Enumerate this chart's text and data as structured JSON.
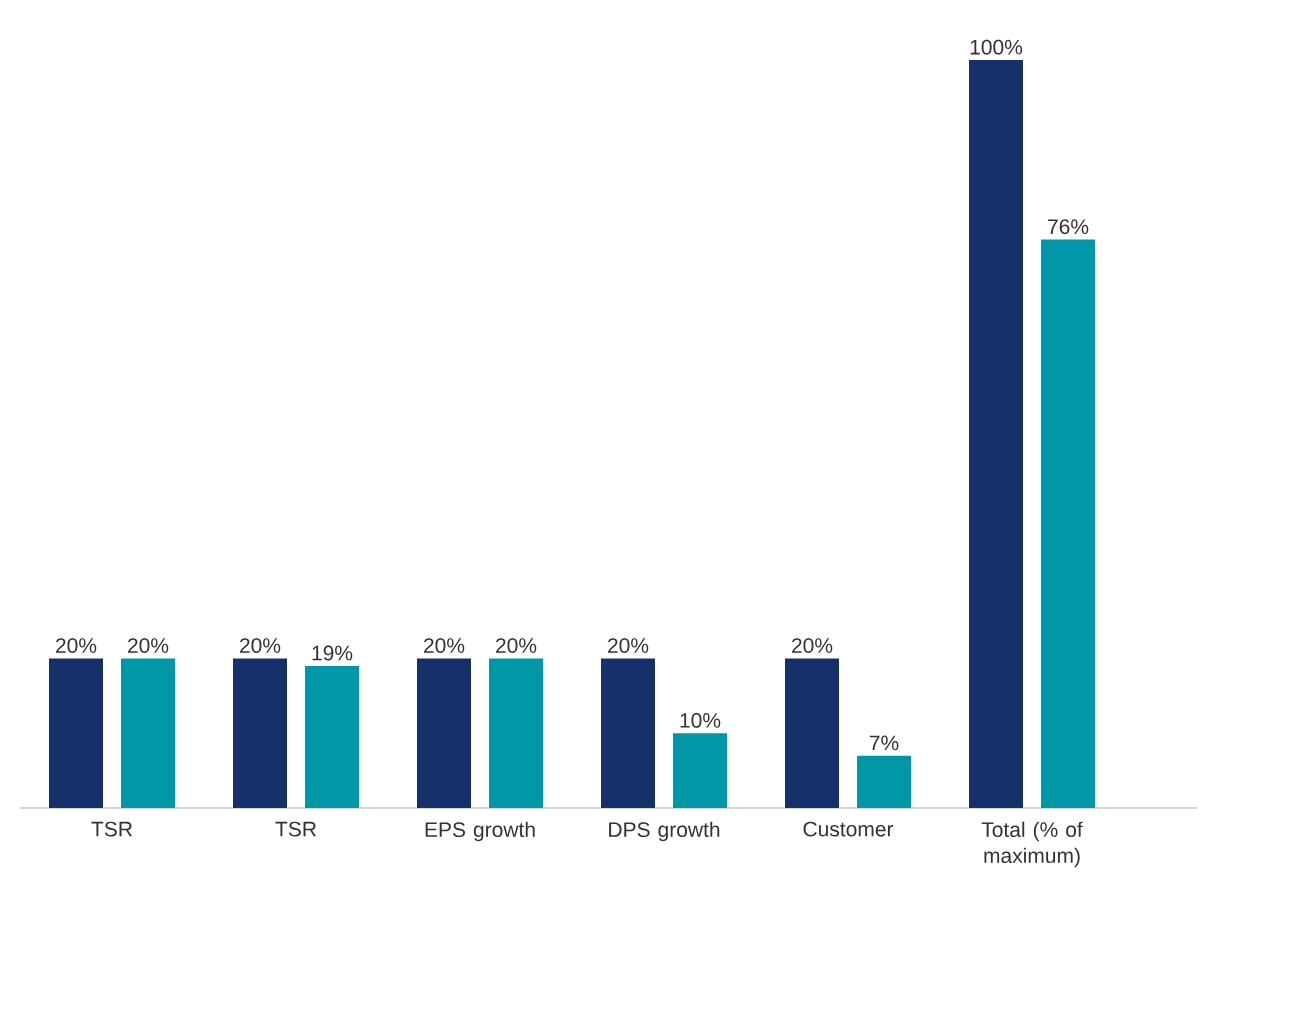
{
  "chart_data": {
    "type": "bar",
    "categories": [
      "TSR",
      "TSR",
      "EPS growth",
      "DPS growth",
      "Customer",
      "Total (% of maximum)"
    ],
    "series": [
      {
        "color": "#15306b",
        "values": [
          20,
          20,
          20,
          20,
          20,
          100
        ],
        "value_labels": [
          "20%",
          "20%",
          "20%",
          "20%",
          "20%",
          "100%"
        ]
      },
      {
        "color": "#0097a9",
        "values": [
          20,
          19,
          20,
          10,
          7,
          76
        ],
        "value_labels": [
          "20%",
          "19%",
          "20%",
          "10%",
          "7%",
          "76%"
        ]
      }
    ],
    "tick_labels": "x",
    "grid": false
  }
}
